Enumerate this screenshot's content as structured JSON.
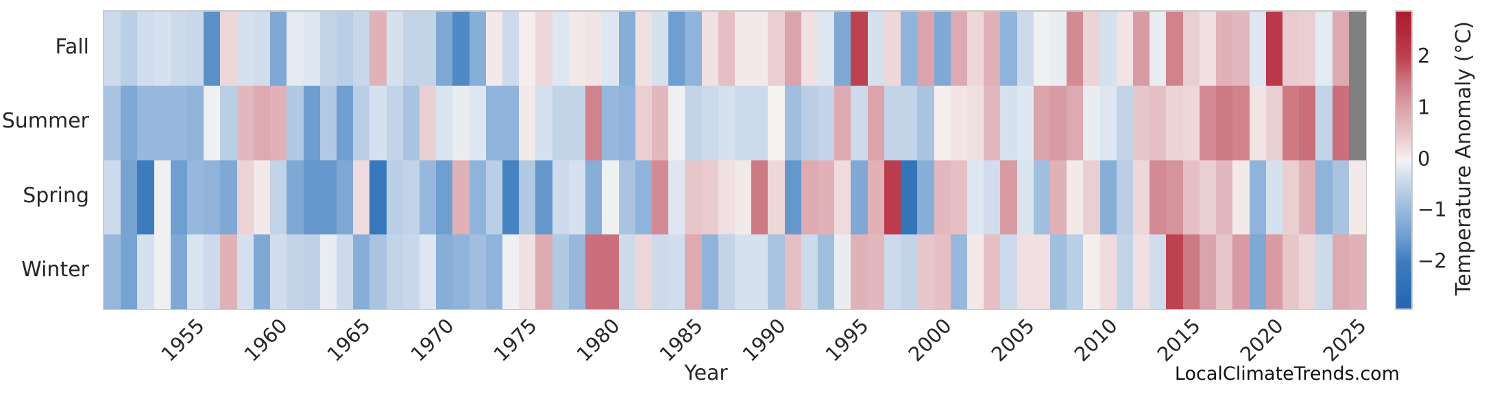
{
  "figure": {
    "xlabel": "Year",
    "watermark": "LocalClimateTrends.com"
  },
  "chart_data": {
    "type": "heatmap",
    "xlabel": "Year",
    "colorbar_label": "Temperature Anomaly (°C)",
    "watermark": "LocalClimateTrends.com",
    "year_start": 1950,
    "year_end": 2025,
    "x_ticks": [
      "1955",
      "1960",
      "1965",
      "1970",
      "1975",
      "1980",
      "1985",
      "1990",
      "1995",
      "2000",
      "2005",
      "2010",
      "2015",
      "2020",
      "2025"
    ],
    "rows": [
      "Fall",
      "Summer",
      "Spring",
      "Winter"
    ],
    "vmin": -2.9,
    "vmax": 2.9,
    "colorbar_ticks": [
      {
        "value": 2,
        "label": "2"
      },
      {
        "value": 1,
        "label": "1"
      },
      {
        "value": 0,
        "label": "0"
      },
      {
        "value": -1,
        "label": "−1"
      },
      {
        "value": -2,
        "label": "−2"
      }
    ],
    "missing_color": "#808080",
    "frame_color": "#c9c9c9",
    "colormap_stops": [
      [
        -2.9,
        "#2565b2"
      ],
      [
        -2.0,
        "#3c7cbd"
      ],
      [
        -1.5,
        "#6f9ed0"
      ],
      [
        -1.0,
        "#97b8dc"
      ],
      [
        -0.5,
        "#c3d4e8"
      ],
      [
        -0.15,
        "#e3eaf2"
      ],
      [
        0.0,
        "#f5f3f2"
      ],
      [
        0.15,
        "#f2e4e5"
      ],
      [
        0.5,
        "#e7c6ca"
      ],
      [
        1.0,
        "#dba3ab"
      ],
      [
        1.5,
        "#cd7a85"
      ],
      [
        2.0,
        "#bd4251"
      ],
      [
        2.5,
        "#b22a3c"
      ],
      [
        2.9,
        "#ae1c2e"
      ]
    ],
    "series": [
      {
        "name": "Fall",
        "values": [
          -0.4,
          -0.6,
          -0.35,
          -0.3,
          -0.4,
          -0.45,
          -1.7,
          0.3,
          -0.3,
          -0.35,
          -1.3,
          -0.15,
          -0.2,
          -0.5,
          -0.6,
          -0.45,
          0.8,
          -0.3,
          -0.5,
          -0.5,
          -1.3,
          -1.8,
          -1.2,
          0.1,
          -0.4,
          0.05,
          0.3,
          -0.2,
          0.1,
          0.15,
          -0.2,
          -1.2,
          0.2,
          -0.3,
          -1.5,
          -1.1,
          0.2,
          0.6,
          0.1,
          0.1,
          0.4,
          1.0,
          0.2,
          -0.2,
          -1.3,
          2.0,
          -0.3,
          0.3,
          -1.1,
          1.0,
          -1.3,
          0.9,
          0.3,
          0.8,
          -1.1,
          -0.4,
          -0.05,
          -0.1,
          1.3,
          0.35,
          -0.3,
          0.15,
          1.1,
          -0.1,
          1.4,
          0.4,
          0.2,
          0.8,
          0.7,
          -0.2,
          2.2,
          0.45,
          0.4,
          -0.15,
          0.9,
          null
        ]
      },
      {
        "name": "Summer",
        "values": [
          -0.8,
          -1.3,
          -1.0,
          -1.0,
          -1.0,
          -1.1,
          -0.05,
          -0.6,
          0.7,
          0.9,
          0.8,
          -0.7,
          -1.5,
          -0.7,
          -1.5,
          -0.6,
          -0.3,
          -0.5,
          -0.8,
          0.4,
          -0.25,
          -0.1,
          -0.2,
          -1.1,
          -1.1,
          0.1,
          -0.3,
          -0.5,
          -0.5,
          1.4,
          -1.0,
          -1.1,
          0.4,
          0.7,
          -0.05,
          -0.5,
          -0.4,
          -0.3,
          -0.4,
          -0.4,
          0.0,
          -0.9,
          -0.6,
          -0.5,
          0.9,
          -0.4,
          1.0,
          -0.5,
          -0.5,
          -0.8,
          0.05,
          0.15,
          0.2,
          0.7,
          -0.3,
          -0.2,
          1.0,
          1.1,
          0.9,
          -0.1,
          -0.2,
          -0.5,
          0.5,
          0.6,
          0.35,
          0.3,
          1.3,
          1.5,
          1.4,
          0.15,
          0.4,
          1.5,
          1.6,
          -0.5,
          1.6,
          null
        ]
      },
      {
        "name": "Spring",
        "values": [
          -0.4,
          -1.4,
          -2.0,
          -0.05,
          -1.5,
          -1.0,
          -1.1,
          -1.3,
          0.35,
          0.1,
          -0.5,
          -1.3,
          -1.6,
          -1.6,
          -1.3,
          0.25,
          -2.2,
          -0.6,
          -0.5,
          -1.0,
          -1.5,
          0.8,
          -1.1,
          -0.6,
          -1.9,
          -0.7,
          -1.6,
          -0.4,
          -0.3,
          -1.2,
          -0.05,
          -0.8,
          -1.1,
          1.3,
          -0.2,
          0.5,
          0.45,
          0.2,
          0.1,
          1.5,
          0.3,
          -1.6,
          0.9,
          0.8,
          0.25,
          -1.3,
          0.8,
          2.1,
          -2.3,
          -1.2,
          0.7,
          0.6,
          -0.2,
          -0.35,
          1.1,
          -0.25,
          -0.9,
          0.8,
          0.1,
          0.4,
          -1.2,
          -0.6,
          0.3,
          1.3,
          1.2,
          0.6,
          0.4,
          0.7,
          0.1,
          -1.1,
          -0.3,
          0.4,
          0.8,
          -1.1,
          -0.8,
          0.1
        ]
      },
      {
        "name": "Winter",
        "values": [
          -1.0,
          -1.4,
          -0.3,
          -0.05,
          -1.3,
          -0.25,
          -0.4,
          0.8,
          -0.3,
          -1.3,
          -0.35,
          -0.5,
          -0.55,
          -0.1,
          -0.4,
          -1.2,
          -0.8,
          -0.5,
          -0.45,
          -0.2,
          -1.2,
          -1.1,
          -0.9,
          -1.1,
          -0.05,
          0.2,
          0.9,
          -0.7,
          -1.0,
          1.6,
          1.6,
          -0.4,
          0.3,
          -0.4,
          -0.35,
          0.9,
          -1.1,
          -0.5,
          -0.3,
          -0.3,
          -0.8,
          0.6,
          -0.4,
          -0.9,
          -0.1,
          0.8,
          0.7,
          -0.4,
          -0.5,
          0.5,
          0.6,
          -1.0,
          0.1,
          0.6,
          -0.4,
          0.2,
          0.2,
          -0.9,
          -0.6,
          0.05,
          0.25,
          -0.5,
          0.2,
          -0.35,
          2.0,
          1.5,
          1.0,
          0.5,
          1.1,
          -1.3,
          1.1,
          0.5,
          0.3,
          -0.4,
          0.9,
          0.8
        ]
      }
    ]
  }
}
